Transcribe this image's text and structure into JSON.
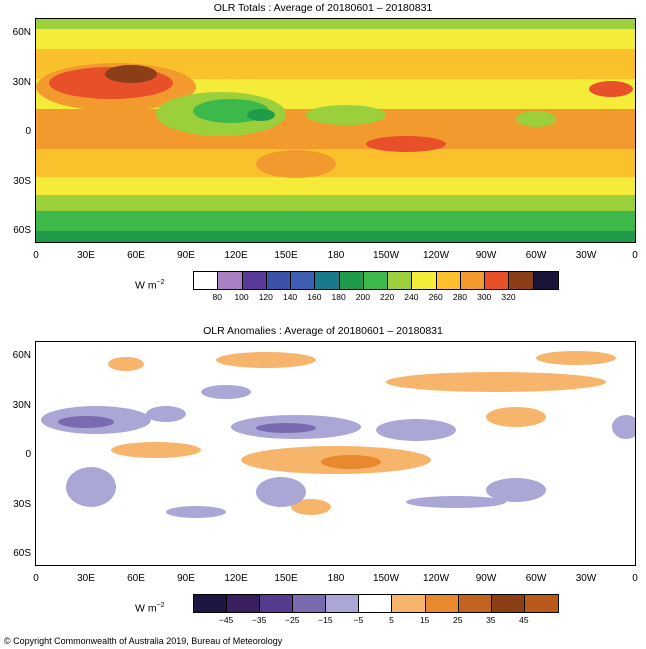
{
  "maps": [
    {
      "title": "OLR Totals : Average of 20180601 – 20180831",
      "y_labels": [
        "60N",
        "30N",
        "0",
        "30S",
        "60S"
      ],
      "x_labels": [
        "0",
        "30E",
        "60E",
        "90E",
        "120E",
        "150E",
        "180",
        "150W",
        "120W",
        "90W",
        "60W",
        "30W",
        "0"
      ],
      "units_text": "W m",
      "units_exp": "−2",
      "colorbar_colors": [
        "#ffffff",
        "#a87fc2",
        "#5a3a9a",
        "#3a52a8",
        "#3f5fb5",
        "#187a8a",
        "#1f9b4a",
        "#3cb94a",
        "#9ccf3c",
        "#f4ec38",
        "#fbc12c",
        "#f39a2e",
        "#e8502a",
        "#8b3e18",
        "#1a1438"
      ],
      "colorbar_ticks": [
        "80",
        "100",
        "120",
        "140",
        "160",
        "180",
        "200",
        "220",
        "240",
        "260",
        "280",
        "300",
        "320"
      ]
    },
    {
      "title": "OLR Anomalies : Average of 20180601 – 20180831",
      "y_labels": [
        "60N",
        "30N",
        "0",
        "30S",
        "60S"
      ],
      "x_labels": [
        "0",
        "30E",
        "60E",
        "90E",
        "120E",
        "150E",
        "180",
        "150W",
        "120W",
        "90W",
        "60W",
        "30W",
        "0"
      ],
      "units_text": "W m",
      "units_exp": "−2",
      "colorbar_colors": [
        "#1c1640",
        "#3a1f5e",
        "#563a8e",
        "#7a6ab0",
        "#aaa6d6",
        "#ffffff",
        "#f7b56c",
        "#e8892e",
        "#c06420",
        "#8a3e12",
        "#b85a1a"
      ],
      "colorbar_ticks": [
        "−45",
        "−35",
        "−25",
        "−15",
        "−5",
        "5",
        "15",
        "25",
        "35",
        "45"
      ]
    }
  ],
  "copyright": "© Copyright Commonwealth of Australia 2019, Bureau of Meteorology"
}
